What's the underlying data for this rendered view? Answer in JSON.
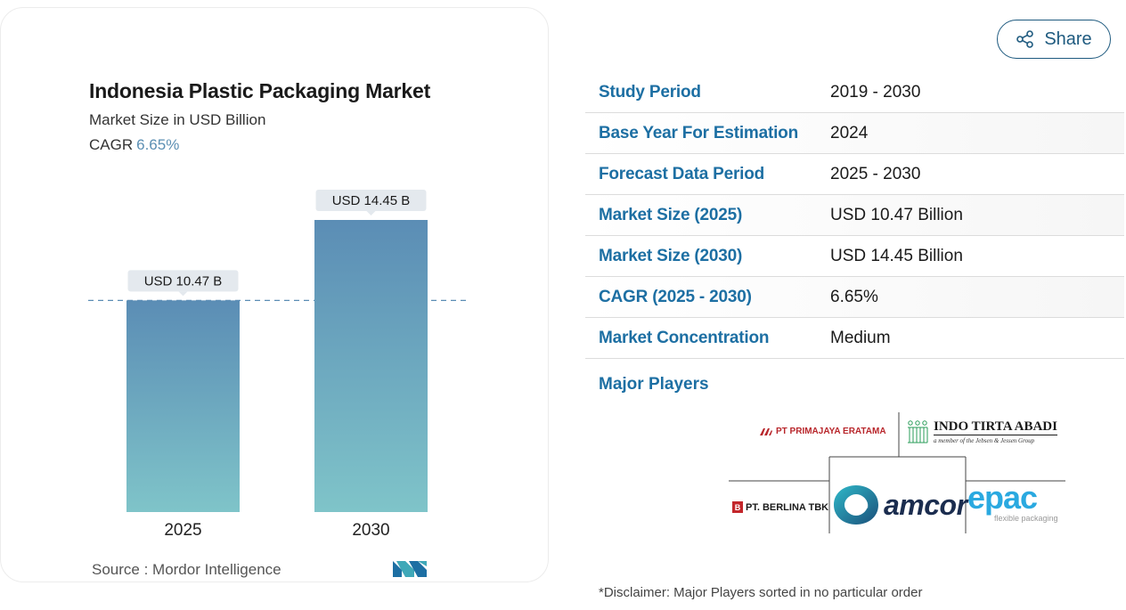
{
  "chart_data": {
    "type": "bar",
    "title": "Indonesia Plastic Packaging Market",
    "subtitle": "Market Size in USD Billion",
    "cagr_label": "CAGR",
    "cagr_value": "6.65%",
    "categories": [
      "2025",
      "2030"
    ],
    "values": [
      10.47,
      14.45
    ],
    "data_labels": [
      "USD 10.47 B",
      "USD 14.45 B"
    ],
    "reference_line_value": 10.47,
    "bar_color_top": "#5b8db5",
    "bar_color_bottom": "#7fc4c9",
    "label_bg": "#e4e9ee"
  },
  "source": "Source :  Mordor Intelligence",
  "share": {
    "label": "Share"
  },
  "info_table": [
    {
      "label": "Study Period",
      "value": "2019 - 2030"
    },
    {
      "label": "Base Year For Estimation",
      "value": "2024"
    },
    {
      "label": "Forecast Data Period",
      "value": "2025 - 2030"
    },
    {
      "label": "Market Size (2025)",
      "value": "USD 10.47 Billion"
    },
    {
      "label": "Market Size (2030)",
      "value": "USD 14.45 Billion"
    },
    {
      "label": "CAGR (2025 - 2030)",
      "value": "6.65%"
    },
    {
      "label": "Market Concentration",
      "value": "Medium"
    }
  ],
  "major_players_label": "Major Players",
  "players": {
    "primajaya": "PT PRIMAJAYA ERATAMA",
    "indo_tirta": "INDO TIRTA ABADI",
    "indo_tirta_sub": "a member of the Jebsen & Jessen Group",
    "berlina": "PT. BERLINA TBK",
    "amcor": "amcor",
    "epac": "epac",
    "epac_sub": "flexible packaging"
  },
  "disclaimer": "*Disclaimer: Major Players sorted in no particular order",
  "colors": {
    "accent": "#1d6fa3",
    "share_border": "#1e5a7f"
  }
}
